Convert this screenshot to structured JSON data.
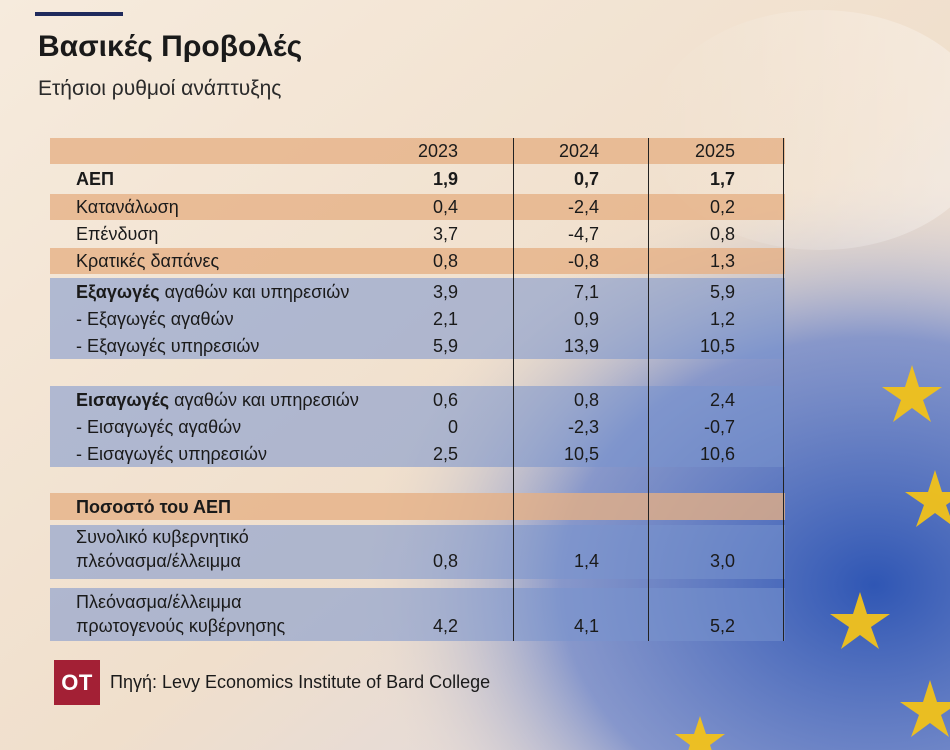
{
  "title": "Βασικές Προβολές",
  "subtitle": "Ετήσιοι ρυθμοί ανάπτυξης",
  "source": "Πηγή: Levy Economics Institute of Bard College",
  "logo_text": "OT",
  "colors": {
    "peach": "#e5af84",
    "blue": "#7894cd",
    "logo": "#a32035",
    "rule": "#1f2a5c"
  },
  "chart_data": {
    "type": "table",
    "columns": [
      "2023",
      "2024",
      "2025"
    ],
    "rows": [
      {
        "label": "ΑΕΠ",
        "values": [
          "1,9",
          "0,7",
          "1,7"
        ]
      },
      {
        "label": "Κατανάλωση",
        "values": [
          "0,4",
          "-2,4",
          "0,2"
        ]
      },
      {
        "label": "Επένδυση",
        "values": [
          "3,7",
          "-4,7",
          "0,8"
        ]
      },
      {
        "label": "Κρατικές δαπάνες",
        "values": [
          "0,8",
          "-0,8",
          "1,3"
        ]
      },
      {
        "label_bold": "Εξαγωγές",
        "label_rest": " αγαθών και υπηρεσιών",
        "values": [
          "3,9",
          "7,1",
          "5,9"
        ]
      },
      {
        "label": "- Εξαγωγές αγαθών",
        "values": [
          "2,1",
          "0,9",
          "1,2"
        ]
      },
      {
        "label": "- Εξαγωγές υπηρεσιών",
        "values": [
          "5,9",
          "13,9",
          "10,5"
        ]
      },
      {
        "label_bold": "Εισαγωγές",
        "label_rest": " αγαθών και υπηρεσιών",
        "values": [
          "0,6",
          "0,8",
          "2,4"
        ]
      },
      {
        "label": "- Εισαγωγές αγαθών",
        "values": [
          "0",
          "-2,3",
          "-0,7"
        ]
      },
      {
        "label": "- Εισαγωγές υπηρεσιών",
        "values": [
          "2,5",
          "10,5",
          "10,6"
        ]
      },
      {
        "label": "Ποσοστό του ΑΕΠ"
      },
      {
        "label_line1": "Συνολικό κυβερνητικό",
        "label_line2": "πλεόνασμα/έλλειμμα",
        "values": [
          "0,8",
          "1,4",
          "3,0"
        ]
      },
      {
        "label_line1": "Πλεόνασμα/έλλειμμα",
        "label_line2": "πρωτογενούς κυβέρνησης",
        "values": [
          "4,2",
          "4,1",
          "5,2"
        ]
      }
    ]
  }
}
